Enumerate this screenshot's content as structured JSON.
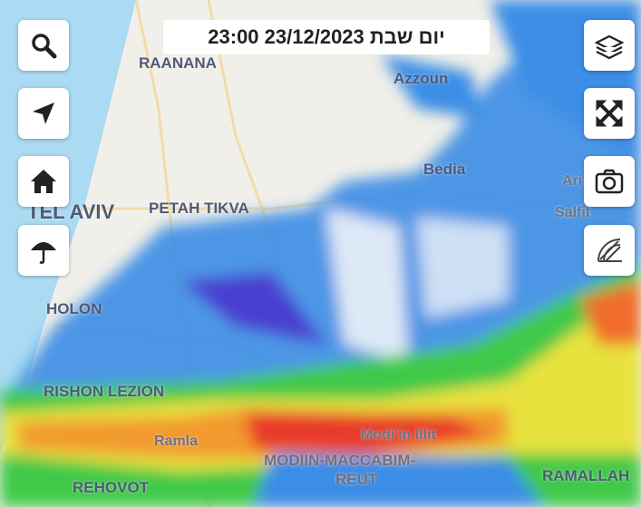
{
  "timestamp": "יום שבת 23/12/2023 23:00",
  "places": [
    "RAANANA",
    "Azzoun",
    "Bedia",
    "Ari",
    "Salfit",
    "TEL AVIV",
    "PETAH TIKVA",
    "HOLON",
    "RISHON LEZION",
    "Ramla",
    "Modi'in Illit",
    "MODIIN-MACCABIM-",
    "REUT",
    "REHOVOT",
    "RAMALLAH"
  ]
}
